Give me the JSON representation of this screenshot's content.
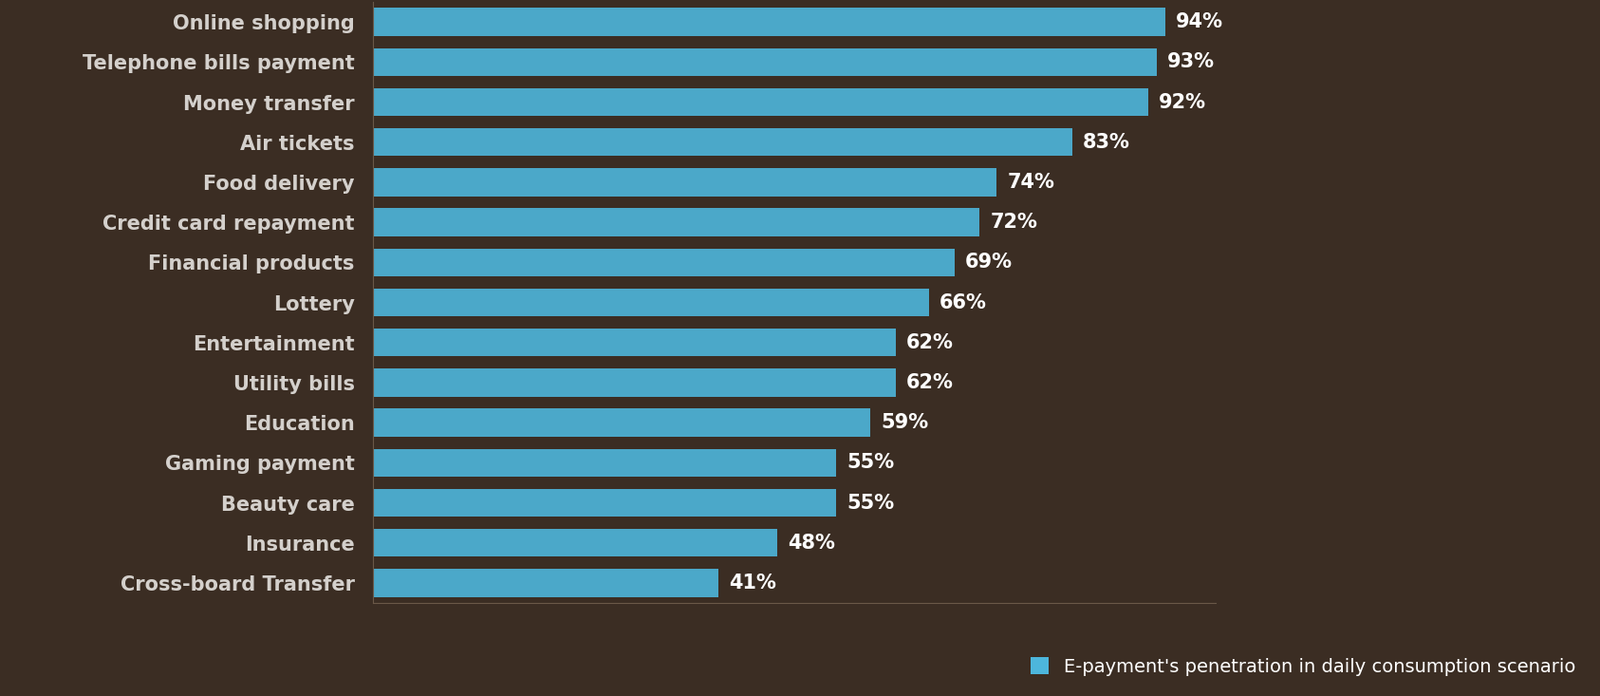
{
  "chart_data": {
    "type": "bar",
    "orientation": "horizontal",
    "categories": [
      "Online shopping",
      "Telephone bills payment",
      "Money transfer",
      "Air tickets",
      "Food delivery",
      "Credit card repayment",
      "Financial products",
      "Lottery",
      "Entertainment",
      "Utility bills",
      "Education",
      "Gaming payment",
      "Beauty care",
      "Insurance",
      "Cross-board Transfer"
    ],
    "series": [
      {
        "name": "E-payment's penetration in daily consumption scenario",
        "color": "#4db6dc",
        "values": [
          94,
          93,
          92,
          83,
          74,
          72,
          69,
          66,
          62,
          62,
          59,
          55,
          55,
          48,
          41
        ],
        "value_labels": [
          "94%",
          "93%",
          "92%",
          "83%",
          "74%",
          "72%",
          "69%",
          "66%",
          "62%",
          "62%",
          "59%",
          "55%",
          "55%",
          "48%",
          "41%"
        ]
      }
    ],
    "xlim": [
      0,
      100
    ],
    "grid": false,
    "legend": "lower right",
    "data_labels": true,
    "tick_labels": "y"
  }
}
